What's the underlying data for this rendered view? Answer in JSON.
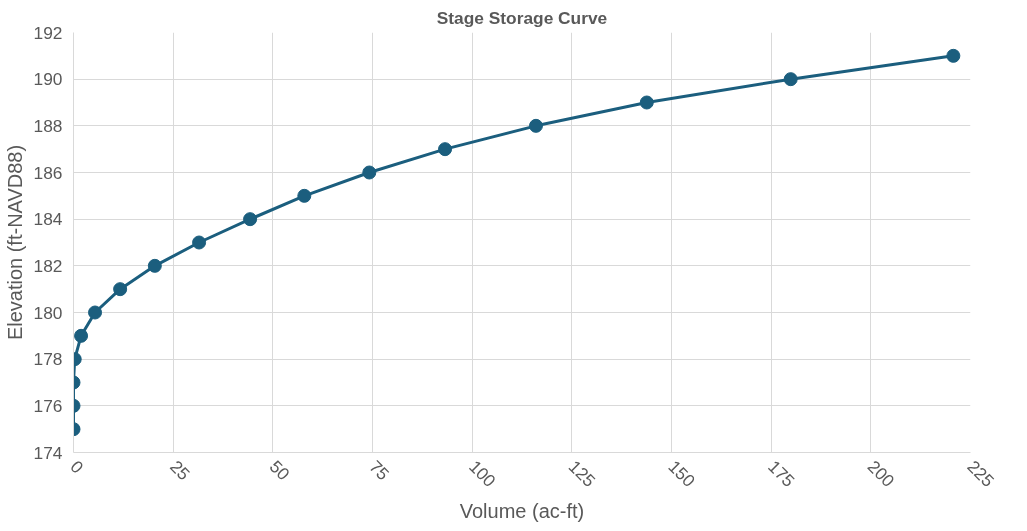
{
  "chart_data": {
    "type": "line",
    "title": "Stage Storage Curve",
    "xlabel": "Volume (ac-ft)",
    "ylabel": "Elevation (ft-NAVD88)",
    "series": [
      {
        "color": "#1b5e7e",
        "x": [
          0,
          0,
          0,
          0.3,
          1.9,
          5.4,
          11.7,
          20.4,
          31.5,
          44.3,
          57.9,
          74.2,
          93.2,
          116,
          143.8,
          179.9,
          220.7
        ],
        "values": [
          175,
          176,
          177,
          178,
          179,
          180,
          181,
          182,
          183,
          184,
          185,
          186,
          187,
          188,
          189,
          190,
          191
        ]
      }
    ],
    "xlim": [
      0,
      225
    ],
    "xticks": [
      0,
      25,
      50,
      75,
      100,
      125,
      150,
      175,
      200,
      225
    ],
    "ylim": [
      174,
      192
    ],
    "yticks": [
      174,
      176,
      178,
      180,
      182,
      184,
      186,
      188,
      190,
      192
    ],
    "grid": true,
    "marker": "circle",
    "line_style": "solid"
  }
}
